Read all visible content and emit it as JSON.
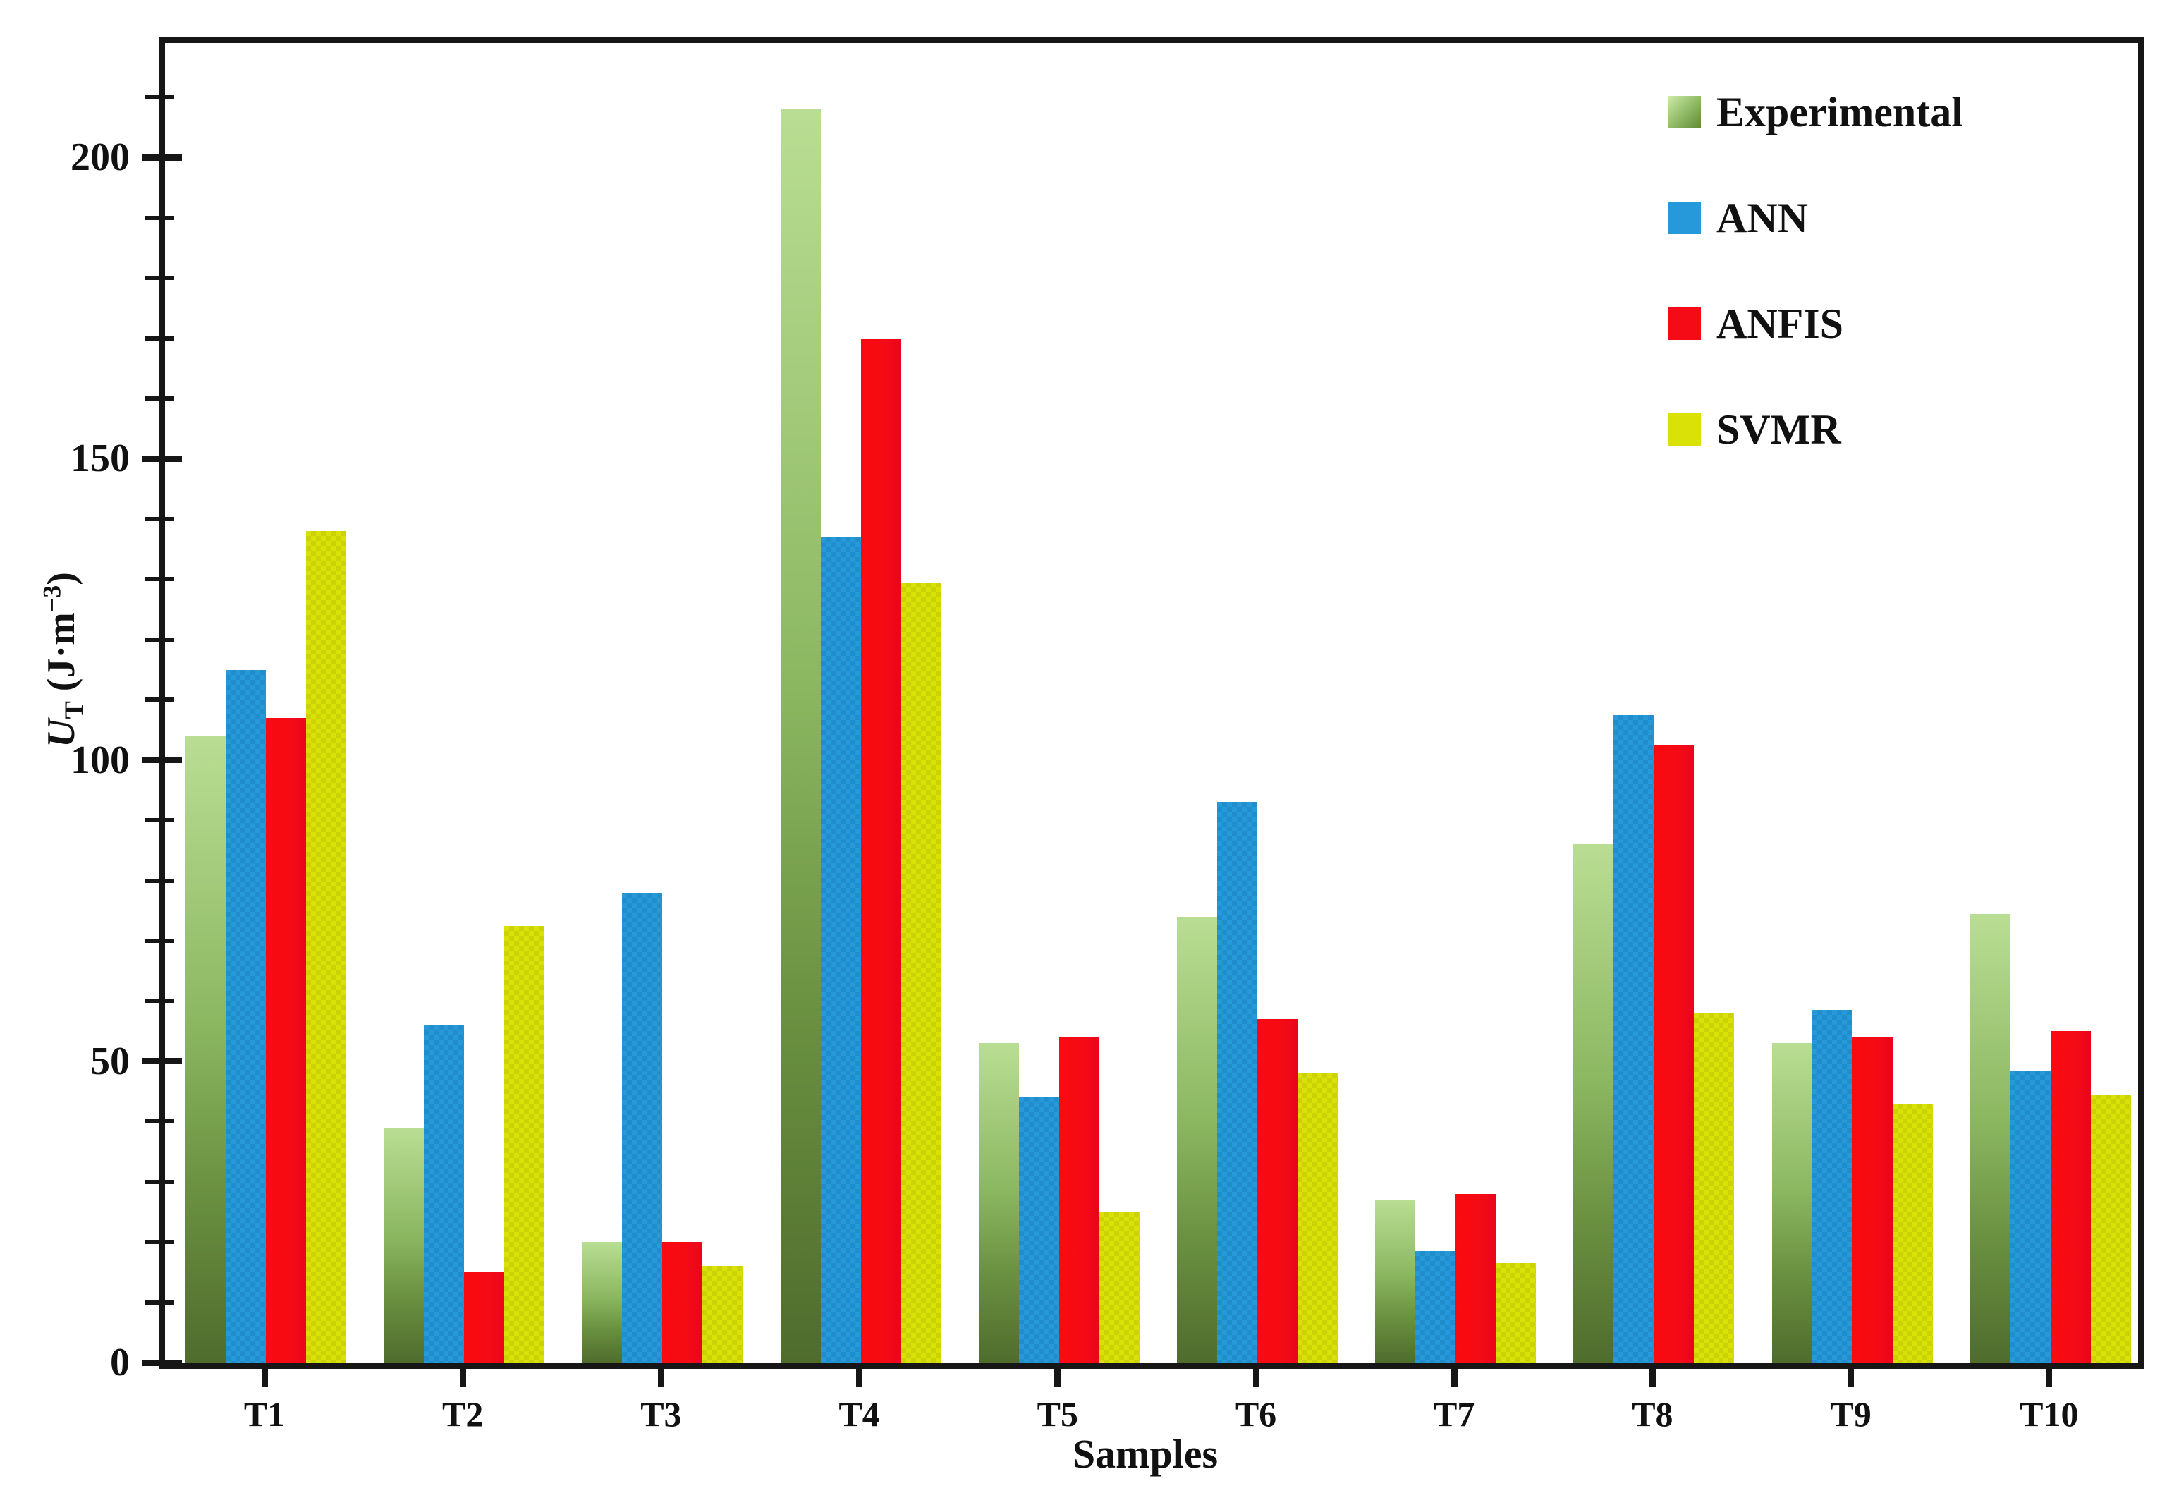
{
  "chart_data": {
    "type": "bar",
    "title": "",
    "xlabel": "Samples",
    "ylabel_parts": {
      "var": "U",
      "sub": "T",
      "mid": " (J·m",
      "sup": "−3",
      "end": ")"
    },
    "categories": [
      "T1",
      "T2",
      "T3",
      "T4",
      "T5",
      "T6",
      "T7",
      "T8",
      "T9",
      "T10"
    ],
    "series": [
      {
        "name": "Experimental",
        "color": "#8cb761",
        "values": [
          104,
          39,
          20,
          208,
          53,
          74,
          27,
          86,
          53,
          74.5
        ]
      },
      {
        "name": "ANN",
        "color": "#2599d9",
        "values": [
          115,
          56,
          78,
          137,
          44,
          93,
          18.5,
          107.5,
          58.5,
          48.5
        ]
      },
      {
        "name": "ANFIS",
        "color": "#f50b15",
        "values": [
          107,
          15,
          20,
          170,
          54,
          57,
          28,
          102.5,
          54,
          55
        ]
      },
      {
        "name": "SVMR",
        "color": "#d9e107",
        "values": [
          138,
          72.5,
          16,
          129.5,
          25,
          48,
          16.5,
          58,
          43,
          44.5
        ]
      }
    ],
    "ylim": [
      0,
      219
    ],
    "yticks_major": [
      0,
      50,
      100,
      150,
      200
    ],
    "ytick_minor_step": 10,
    "ytick_minor_max": 210,
    "grid": "off",
    "legend_position": "top-right",
    "frame": "full-box"
  }
}
